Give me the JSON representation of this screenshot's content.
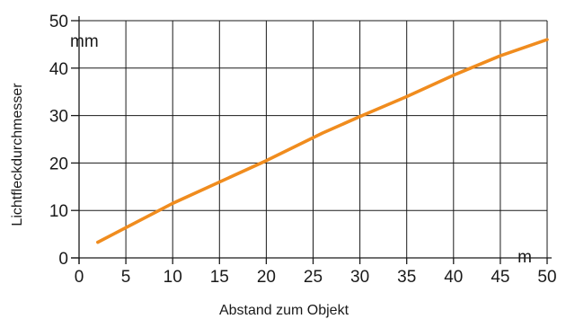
{
  "chart_data": {
    "type": "line",
    "xlabel": "Abstand zum Objekt",
    "ylabel": "Lichtfleckdurchmesser",
    "x_unit": "m",
    "y_unit": "mm",
    "xlim": [
      0,
      50
    ],
    "ylim": [
      0,
      50
    ],
    "x_ticks": [
      "0",
      "5",
      "10",
      "15",
      "20",
      "25",
      "30",
      "35",
      "40",
      "45",
      "50"
    ],
    "y_ticks": [
      "0",
      "10",
      "20",
      "30",
      "40",
      "50"
    ],
    "grid": true,
    "series": [
      {
        "color": "#f08c1e",
        "x": [
          2,
          10,
          20,
          26,
          30,
          35,
          40,
          45,
          50
        ],
        "y": [
          3.3,
          11.5,
          20.5,
          26.3,
          29.8,
          34.0,
          38.5,
          42.6,
          46.0
        ]
      }
    ]
  }
}
